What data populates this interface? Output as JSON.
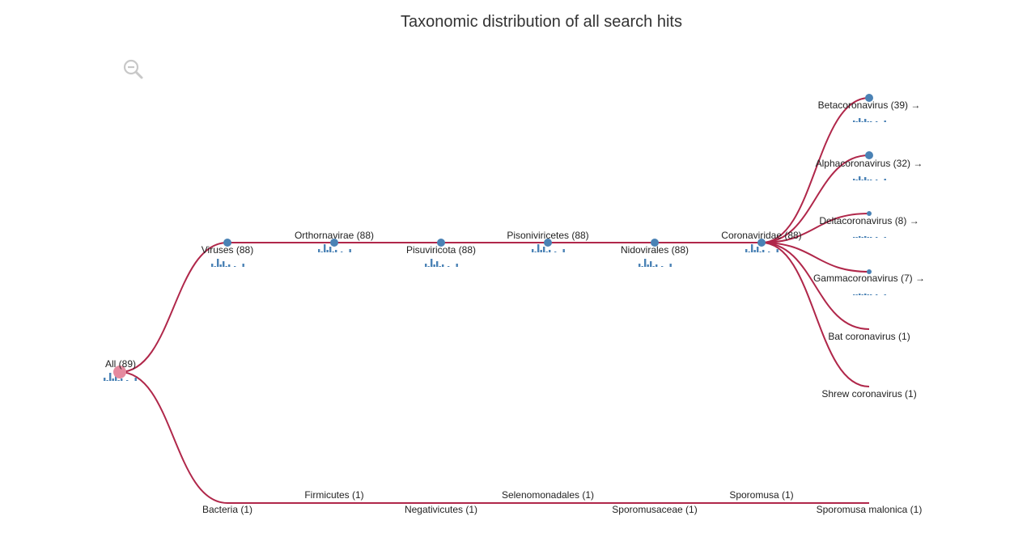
{
  "title": "Taxonomic distribution of all search hits",
  "colors": {
    "link": "#b0274a",
    "node": "#4a82b5",
    "root_node": "#e58a9f",
    "label": "#222222"
  },
  "icons": {
    "zoom": "zoom-out-icon"
  },
  "nodes": [
    {
      "id": "all",
      "label": "All (89)",
      "count": 89,
      "root": true
    },
    {
      "id": "viruses",
      "label": "Viruses (88)",
      "count": 88,
      "parent": "all"
    },
    {
      "id": "orthornavirae",
      "label": "Orthornavirae (88)",
      "count": 88,
      "parent": "viruses"
    },
    {
      "id": "pisuviricota",
      "label": "Pisuviricota (88)",
      "count": 88,
      "parent": "orthornavirae"
    },
    {
      "id": "pisoniviricetes",
      "label": "Pisoniviricetes (88)",
      "count": 88,
      "parent": "pisuviricota"
    },
    {
      "id": "nidovirales",
      "label": "Nidovirales (88)",
      "count": 88,
      "parent": "pisoniviricetes"
    },
    {
      "id": "coronaviridae",
      "label": "Coronaviridae (88)",
      "count": 88,
      "parent": "nidovirales"
    },
    {
      "id": "betacoronavirus",
      "label": "Betacoronavirus (39) →",
      "count": 39,
      "parent": "coronaviridae",
      "expandable": true
    },
    {
      "id": "alphacoronavirus",
      "label": "Alphacoronavirus (32) →",
      "count": 32,
      "parent": "coronaviridae",
      "expandable": true
    },
    {
      "id": "deltacoronavirus",
      "label": "Deltacoronavirus (8) →",
      "count": 8,
      "parent": "coronaviridae",
      "expandable": true
    },
    {
      "id": "gammacoronavirus",
      "label": "Gammacoronavirus (7) →",
      "count": 7,
      "parent": "coronaviridae",
      "expandable": true
    },
    {
      "id": "bat-coronavirus",
      "label": "Bat coronavirus (1)",
      "count": 1,
      "parent": "coronaviridae"
    },
    {
      "id": "shrew-coronavirus",
      "label": "Shrew coronavirus (1)",
      "count": 1,
      "parent": "coronaviridae"
    },
    {
      "id": "bacteria",
      "label": "Bacteria (1)",
      "count": 1,
      "parent": "all"
    },
    {
      "id": "firmicutes",
      "label": "Firmicutes (1)",
      "count": 1,
      "parent": "bacteria"
    },
    {
      "id": "negativicutes",
      "label": "Negativicutes (1)",
      "count": 1,
      "parent": "firmicutes"
    },
    {
      "id": "selenomonadales",
      "label": "Selenomonadales (1)",
      "count": 1,
      "parent": "negativicutes"
    },
    {
      "id": "sporomusaceae",
      "label": "Sporomusaceae (1)",
      "count": 1,
      "parent": "selenomonadales"
    },
    {
      "id": "sporomusa",
      "label": "Sporomusa (1)",
      "count": 1,
      "parent": "sporomusaceae"
    },
    {
      "id": "sporomusa-malonica",
      "label": "Sporomusa malonica (1)",
      "count": 1,
      "parent": "sporomusa"
    }
  ]
}
